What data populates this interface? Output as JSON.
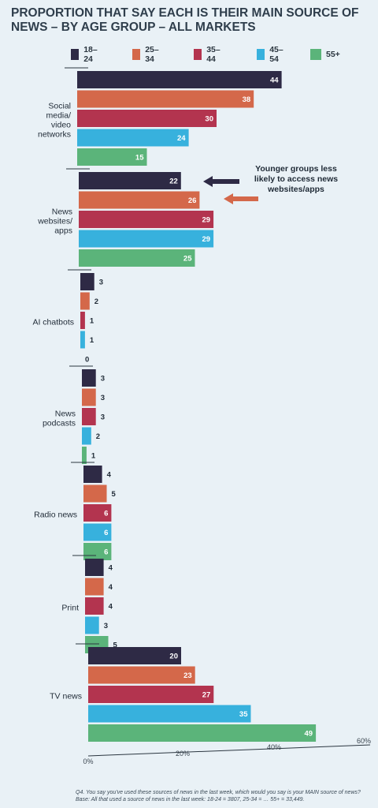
{
  "title": "PROPORTION THAT SAY EACH IS THEIR MAIN SOURCE OF NEWS – BY AGE GROUP – ALL MARKETS",
  "annotation": "Younger groups less likely to access news websites/apps",
  "footnote": "Q4. You say you've used these sources of news in the last week, which would you say is your MAIN source of news? Base: All that used a source of news in the last week: 18-24 = 3807, 25-34 = … 55+ = 33,449.",
  "chart_data": {
    "type": "bar",
    "orientation": "horizontal",
    "categories": [
      "Social media/ video networks",
      "News websites/ apps",
      "AI chatbots",
      "News podcasts",
      "Radio news",
      "Print",
      "TV news"
    ],
    "category_lines": [
      [
        "Social",
        "media/",
        "video",
        "networks"
      ],
      [
        "News",
        "websites/",
        "apps"
      ],
      [
        "AI chatbots"
      ],
      [
        "News",
        "podcasts"
      ],
      [
        "Radio news"
      ],
      [
        "Print"
      ],
      [
        "TV news"
      ]
    ],
    "series": [
      {
        "name": "18–24",
        "color": "#2e2a45",
        "values": [
          44,
          22,
          3,
          3,
          4,
          4,
          20
        ]
      },
      {
        "name": "25–34",
        "color": "#d4684a",
        "values": [
          38,
          26,
          2,
          3,
          5,
          4,
          23
        ]
      },
      {
        "name": "35–44",
        "color": "#b3344f",
        "values": [
          30,
          29,
          1,
          3,
          6,
          4,
          27
        ]
      },
      {
        "name": "45–54",
        "color": "#37b1dd",
        "values": [
          24,
          29,
          1,
          2,
          6,
          3,
          35
        ]
      },
      {
        "name": "55+",
        "color": "#5bb47a",
        "values": [
          15,
          25,
          0,
          1,
          6,
          5,
          49
        ]
      }
    ],
    "x_ticks": [
      "0%",
      "20%",
      "40%",
      "60%"
    ],
    "xlim": [
      0,
      60
    ],
    "legend_position": "top"
  }
}
